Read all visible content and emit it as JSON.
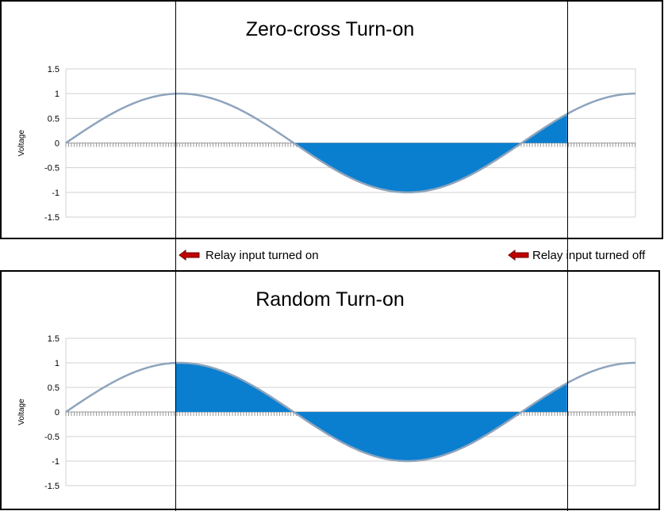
{
  "chart_data": [
    {
      "type": "area",
      "title": "Zero-cross Turn-on",
      "ylabel": "Voltage",
      "xlabel": "",
      "ylim": [
        -1.5,
        1.5
      ],
      "y_ticks": [
        "1.5",
        "1",
        "0.5",
        "0",
        "-0.5",
        "-1",
        "-1.5"
      ],
      "grid": true,
      "legend": "none",
      "x_range_cycles": [
        0,
        1.25
      ],
      "series": [
        {
          "shape": "sine",
          "amplitude": 1,
          "cycles": 1.25
        }
      ],
      "shaded_from": 0.5,
      "shaded_to": 1.1,
      "colors": {
        "line": "#8EA4BC",
        "fill": "#0A7FD0",
        "grid": "#D0D0D0",
        "ticks": "#9A9A9A"
      }
    },
    {
      "type": "area",
      "title": "Random Turn-on",
      "ylabel": "Voltage",
      "xlabel": "",
      "ylim": [
        -1.5,
        1.5
      ],
      "y_ticks": [
        "1.5",
        "1",
        "0.5",
        "0",
        "-0.5",
        "-1",
        "-1.5"
      ],
      "grid": true,
      "legend": "none",
      "x_range_cycles": [
        0,
        1.25
      ],
      "series": [
        {
          "shape": "sine",
          "amplitude": 1,
          "cycles": 1.25
        }
      ],
      "shaded_from": 0.24,
      "shaded_to": 1.1,
      "colors": {
        "line": "#8EA4BC",
        "fill": "#0A7FD0",
        "grid": "#D0D0D0",
        "ticks": "#9A9A9A"
      }
    }
  ],
  "annotations": {
    "on_label": "Relay input turned on",
    "off_label": "Relay input turned off",
    "on_at_cycles": 0.24,
    "off_at_cycles": 1.1,
    "arrow_color": "#C00000",
    "arrow_icon": "left-arrow-icon"
  }
}
